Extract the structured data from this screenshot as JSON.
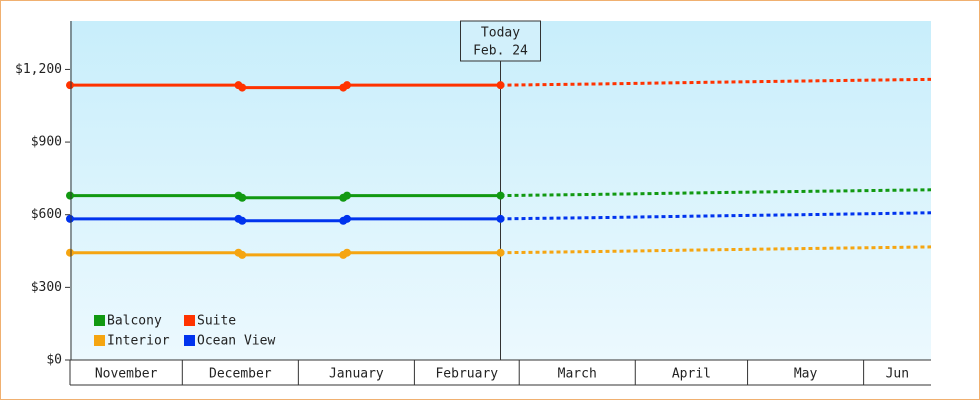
{
  "chart_data": {
    "type": "line",
    "x": [
      0,
      45,
      46,
      73,
      74,
      115
    ],
    "forecast_x": [
      115,
      141,
      171,
      200,
      230
    ],
    "xlim": [
      0,
      230
    ],
    "xticks": [
      {
        "value": 0,
        "label": "November"
      },
      {
        "value": 30,
        "label": "December"
      },
      {
        "value": 61,
        "label": "January"
      },
      {
        "value": 92,
        "label": "February"
      },
      {
        "value": 120,
        "label": "March"
      },
      {
        "value": 151,
        "label": "April"
      },
      {
        "value": 181,
        "label": "May"
      },
      {
        "value": 212,
        "label": "Jun"
      }
    ],
    "ylim": [
      0,
      1400
    ],
    "yticks": [
      {
        "value": 0,
        "label": "$0"
      },
      {
        "value": 300,
        "label": "$300"
      },
      {
        "value": 600,
        "label": "$600"
      },
      {
        "value": 900,
        "label": "$900"
      },
      {
        "value": 1200,
        "label": "$1,200"
      }
    ],
    "annotation": {
      "x": 115,
      "lines": [
        "Today",
        "Feb. 24"
      ]
    },
    "legend": "bottom-left",
    "series": [
      {
        "name": "Balcony",
        "color": "#119911",
        "values": [
          679,
          679,
          670,
          670,
          679,
          679
        ],
        "forecast": [
          679,
          684,
          691,
          697,
          703
        ]
      },
      {
        "name": "Suite",
        "color": "#ff3300",
        "values": [
          1135,
          1135,
          1125,
          1125,
          1135,
          1135
        ],
        "forecast": [
          1135,
          1140,
          1147,
          1153,
          1159
        ]
      },
      {
        "name": "Interior",
        "color": "#f5a511",
        "values": [
          443,
          443,
          434,
          434,
          443,
          443
        ],
        "forecast": [
          443,
          448,
          455,
          461,
          467
        ]
      },
      {
        "name": "Ocean View",
        "color": "#0033ee",
        "values": [
          583,
          583,
          575,
          575,
          583,
          583
        ],
        "forecast": [
          583,
          588,
          595,
          601,
          608
        ]
      }
    ]
  }
}
